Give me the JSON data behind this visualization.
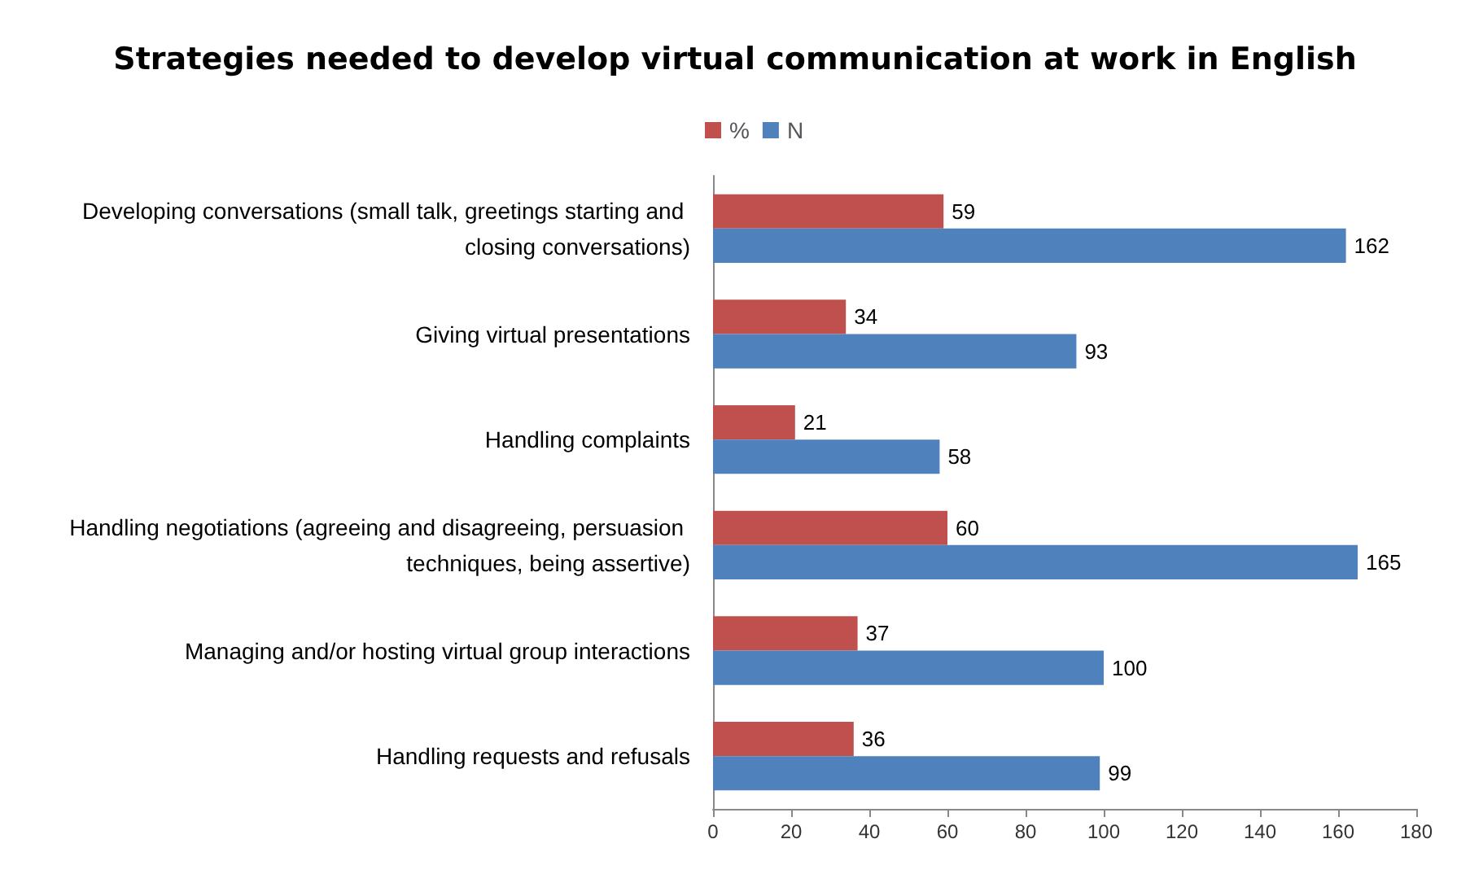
{
  "chart_data": {
    "type": "bar",
    "orientation": "horizontal",
    "title": "Strategies needed to develop virtual communication at work in English",
    "categories": [
      "Developing conversations (small talk, greetings starting and closing conversations)",
      "Giving virtual presentations",
      "Handling complaints",
      "Handling negotiations (agreeing and disagreeing, persuasion techniques, being assertive)",
      "Managing and/or hosting virtual group interactions",
      "Handling requests and refusals"
    ],
    "series": [
      {
        "name": "%",
        "color": "#c0504d",
        "values": [
          59,
          34,
          21,
          60,
          37,
          36
        ]
      },
      {
        "name": "N",
        "color": "#4f81bd",
        "values": [
          162,
          93,
          58,
          165,
          100,
          99
        ]
      }
    ],
    "xlim": [
      0,
      180
    ],
    "xticks": [
      0,
      20,
      40,
      60,
      80,
      100,
      120,
      140,
      160,
      180
    ],
    "grid": false,
    "legend": "top",
    "data_labels": true
  }
}
